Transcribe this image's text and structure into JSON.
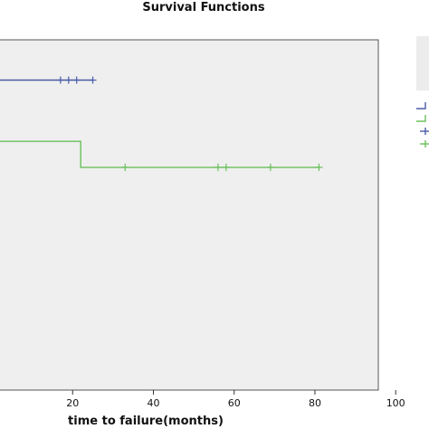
{
  "chart_data": {
    "type": "line",
    "title": "Survival Functions",
    "xlabel": "time to failure(months)",
    "ylabel": "",
    "xlim": [
      0,
      105
    ],
    "ylim": [
      0,
      1
    ],
    "x_ticks": [
      20,
      40,
      60,
      80,
      100
    ],
    "grid": false,
    "legend_position": "right",
    "series": [
      {
        "color": "#4a5ca8",
        "steps": [
          [
            0,
            0.885
          ],
          [
            25,
            0.885
          ]
        ],
        "censored": [
          17,
          19,
          21,
          25
        ]
      },
      {
        "color": "#6abf5a",
        "steps": [
          [
            0,
            0.71
          ],
          [
            22,
            0.71
          ],
          [
            22,
            0.636
          ],
          [
            81,
            0.636
          ]
        ],
        "censored": [
          33,
          56,
          58,
          69,
          81
        ]
      }
    ]
  },
  "legend": {
    "items": [
      {
        "color": "#4a5ca8",
        "symbol": "step"
      },
      {
        "color": "#6abf5a",
        "symbol": "step"
      },
      {
        "color": "#4a5ca8",
        "symbol": "plus"
      },
      {
        "color": "#6abf5a",
        "symbol": "plus"
      }
    ]
  }
}
